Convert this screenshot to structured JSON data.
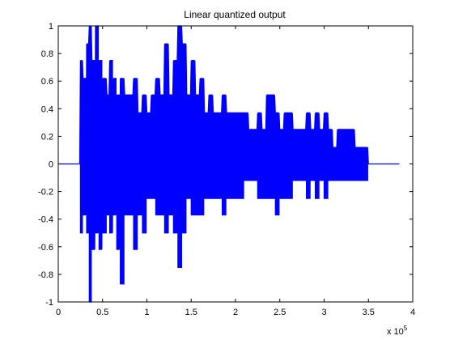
{
  "chart_data": {
    "type": "line",
    "title": "Linear quantized output",
    "xlabel": "",
    "ylabel": "",
    "x_multiplier_label": {
      "base": "x 10",
      "exponent": "5"
    },
    "xlim": [
      0,
      400000
    ],
    "ylim": [
      -1,
      1
    ],
    "x_ticks": [
      0,
      50000,
      100000,
      150000,
      200000,
      250000,
      300000,
      350000,
      400000
    ],
    "x_tick_labels": [
      "0",
      "0.5",
      "1",
      "1.5",
      "2",
      "2.5",
      "3",
      "3.5",
      "4"
    ],
    "y_ticks": [
      -1,
      -0.8,
      -0.6,
      -0.4,
      -0.2,
      0,
      0.2,
      0.4,
      0.6,
      0.8,
      1
    ],
    "y_tick_labels": [
      "-1",
      "-0.8",
      "-0.6",
      "-0.4",
      "-0.2",
      "0",
      "0.2",
      "0.4",
      "0.6",
      "0.8",
      "1"
    ],
    "grid": false,
    "series": [
      {
        "color": "#0000ff",
        "x": [
          0,
          25000,
          28000,
          32000,
          35000,
          38000,
          42000,
          46000,
          50000,
          55000,
          58000,
          62000,
          66000,
          70000,
          75000,
          80000,
          85000,
          90000,
          95000,
          100000,
          105000,
          110000,
          115000,
          120000,
          125000,
          130000,
          135000,
          140000,
          145000,
          150000,
          155000,
          160000,
          165000,
          170000,
          175000,
          180000,
          185000,
          190000,
          195000,
          200000,
          205000,
          210000,
          215000,
          220000,
          225000,
          230000,
          235000,
          240000,
          245000,
          250000,
          255000,
          260000,
          265000,
          270000,
          275000,
          280000,
          285000,
          290000,
          295000,
          300000,
          305000,
          310000,
          315000,
          320000,
          325000,
          330000,
          335000,
          340000,
          345000,
          350000,
          385000
        ],
        "max": [
          0,
          0.75,
          0.62,
          0.87,
          1,
          0.75,
          1,
          0.75,
          0.62,
          0.5,
          0.75,
          0.62,
          0.5,
          0.62,
          0.5,
          0.5,
          0.62,
          0.37,
          0.5,
          0.37,
          0.5,
          0.62,
          0.5,
          0.87,
          0.5,
          0.75,
          1,
          0.87,
          0.5,
          0.75,
          0.5,
          0.62,
          0.37,
          0.5,
          0.37,
          0.37,
          0.5,
          0.37,
          0.37,
          0.37,
          0.37,
          0.37,
          0.25,
          0.25,
          0.37,
          0.25,
          0.5,
          0.5,
          0.37,
          0.25,
          0.37,
          0.37,
          0.25,
          0.25,
          0.25,
          0.37,
          0.25,
          0.37,
          0.25,
          0.37,
          0.25,
          0.12,
          0.25,
          0.25,
          0.25,
          0.25,
          0.12,
          0.12,
          0.12,
          0,
          0
        ],
        "min": [
          0,
          -0.5,
          -0.37,
          -0.5,
          -1,
          -0.62,
          -0.5,
          -0.62,
          -0.5,
          -0.37,
          -0.5,
          -0.37,
          -0.62,
          -0.87,
          -0.37,
          -0.37,
          -0.62,
          -0.37,
          -0.5,
          -0.25,
          -0.25,
          -0.37,
          -0.37,
          -0.5,
          -0.37,
          -0.5,
          -0.75,
          -0.5,
          -0.25,
          -0.37,
          -0.37,
          -0.37,
          -0.25,
          -0.25,
          -0.25,
          -0.25,
          -0.37,
          -0.25,
          -0.25,
          -0.25,
          -0.25,
          -0.12,
          -0.12,
          -0.12,
          -0.25,
          -0.25,
          -0.25,
          -0.25,
          -0.37,
          -0.25,
          -0.25,
          -0.25,
          -0.12,
          -0.12,
          -0.12,
          -0.25,
          -0.12,
          -0.25,
          -0.12,
          -0.25,
          -0.12,
          -0.12,
          -0.12,
          -0.12,
          -0.12,
          -0.12,
          -0.12,
          -0.12,
          -0.12,
          0,
          0
        ]
      }
    ]
  }
}
